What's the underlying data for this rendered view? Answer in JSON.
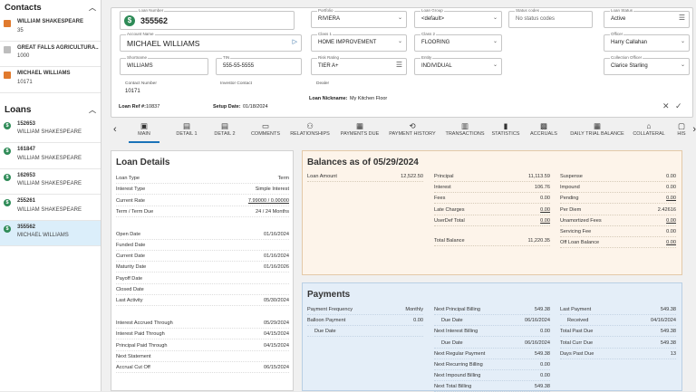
{
  "sidebar": {
    "contacts_title": "Contacts",
    "contacts": [
      {
        "name": "WILLIAM SHAKESPEARE",
        "sub": "35",
        "kind": "person"
      },
      {
        "name": "GREAT FALLS AGRICULTURA...",
        "sub": "1000",
        "kind": "organization"
      },
      {
        "name": "MICHAEL WILLIAMS",
        "sub": "10171",
        "kind": "person"
      }
    ],
    "loans_title": "Loans",
    "loans": [
      {
        "number": "152653",
        "name": "WILLIAM SHAKESPEARE"
      },
      {
        "number": "161847",
        "name": "WILLIAM SHAKESPEARE"
      },
      {
        "number": "162653",
        "name": "WILLIAM SHAKESPEARE"
      },
      {
        "number": "255261",
        "name": "WILLIAM SHAKESPEARE"
      },
      {
        "number": "355562",
        "name": "MICHAEL WILLIAMS"
      }
    ],
    "loan_icon_glyph": "$"
  },
  "header": {
    "loan_number_label": "Loan Number",
    "loan_number": "355562",
    "account_name_label": "Account Name",
    "account_name": "MICHAEL WILLIAMS",
    "shortname_label": "Shortname",
    "shortname": "WILLIAMS",
    "tin_label": "TIN",
    "tin": "555-55-5555",
    "portfolio_label": "Portfolio",
    "portfolio": "RIVIERA",
    "class1_label": "Class 1",
    "class1": "HOME IMPROVEMENT",
    "risk_label": "Risk Rating",
    "risk": "TIER A+",
    "loan_group_label": "Loan Group",
    "loan_group": "<default>",
    "class2_label": "Class 2",
    "class2": "FLOORING",
    "entity_label": "Entity",
    "entity": "INDIVIDUAL",
    "status_codes_label": "Status codes",
    "status_codes": "No status codes",
    "loan_status_label": "Loan Status",
    "loan_status": "Active",
    "officer_label": "Officer",
    "officer": "Harry Callahan",
    "collection_officer_label": "Collection Officer",
    "collection_officer": "Clarice Starling",
    "contact_number_label": "Contact Number",
    "contact_number": "10171",
    "investor_contact_label": "Investor Contact",
    "dealer_label": "Dealer",
    "nickname_label": "Loan Nickname:",
    "nickname": "My Kitchen Floor",
    "loan_ref_label": "Loan Ref #:",
    "loan_ref": "10837",
    "setup_date_label": "Setup Date:",
    "setup_date": "01/18/2024",
    "accent_color": "#2e8b57"
  },
  "tabs": [
    {
      "label": "MAIN",
      "icon": "home-icon",
      "glyph": "▣"
    },
    {
      "label": "DETAIL 1",
      "icon": "detail-icon",
      "glyph": "▤"
    },
    {
      "label": "DETAIL 2",
      "icon": "detail-icon",
      "glyph": "▤"
    },
    {
      "label": "COMMENTS",
      "icon": "comment-icon",
      "glyph": "▭"
    },
    {
      "label": "RELATIONSHIPS",
      "icon": "people-icon",
      "glyph": "⚇"
    },
    {
      "label": "PAYMENTS DUE",
      "icon": "bill-icon",
      "glyph": "▦"
    },
    {
      "label": "PAYMENT HISTORY",
      "icon": "history-icon",
      "glyph": "⟲"
    },
    {
      "label": "TRANSACTIONS",
      "icon": "transactions-icon",
      "glyph": "▥"
    },
    {
      "label": "STATISTICS",
      "icon": "bar-chart-icon",
      "glyph": "▮"
    },
    {
      "label": "ACCRUALS",
      "icon": "calendar-icon",
      "glyph": "▩"
    },
    {
      "label": "DAILY TRIAL BALANCE",
      "icon": "table-icon",
      "glyph": "▦"
    },
    {
      "label": "COLLATERAL",
      "icon": "house-icon",
      "glyph": "⌂"
    },
    {
      "label": "HIS",
      "icon": "history-icon",
      "glyph": "▢"
    }
  ],
  "loan_details": {
    "title": "Loan Details",
    "rows": [
      {
        "k": "Loan Type",
        "v": "Term"
      },
      {
        "k": "Interest Type",
        "v": "Simple Interest"
      },
      {
        "k": "Current Rate",
        "v": "7.99000 / 0.00000",
        "u": true
      },
      {
        "k": "Term / Term Due",
        "v": "24 / 24 Months"
      },
      {
        "k": "",
        "v": ""
      },
      {
        "k": "Open Date",
        "v": "01/16/2024"
      },
      {
        "k": "Funded Date",
        "v": ""
      },
      {
        "k": "Current Date",
        "v": "01/16/2024"
      },
      {
        "k": "Maturity Date",
        "v": "01/16/2026"
      },
      {
        "k": "Payoff Date",
        "v": ""
      },
      {
        "k": "Closed Date",
        "v": ""
      },
      {
        "k": "Last Activity",
        "v": "05/30/2024"
      },
      {
        "k": "",
        "v": ""
      },
      {
        "k": "Interest Accrued Through",
        "v": "05/29/2024"
      },
      {
        "k": "Interest Paid Through",
        "v": "04/15/2024"
      },
      {
        "k": "Principal Paid Through",
        "v": "04/15/2024"
      },
      {
        "k": "Next Statement",
        "v": ""
      },
      {
        "k": "Accrual Cut Off",
        "v": "06/15/2024"
      }
    ]
  },
  "balances": {
    "title": "Balances as of 05/29/2024",
    "col1": [
      {
        "k": "Loan Amount",
        "v": "12,522.50"
      }
    ],
    "col2": [
      {
        "k": "Principal",
        "v": "11,113.59"
      },
      {
        "k": "Interest",
        "v": "106.76"
      },
      {
        "k": "Fees",
        "v": "0.00"
      },
      {
        "k": "Late Charges",
        "v": "0.00",
        "u": true
      },
      {
        "k": "UserDef Total",
        "v": "0.00",
        "u": true
      }
    ],
    "total": {
      "k": "Total Balance",
      "v": "11,220.35"
    },
    "col3": [
      {
        "k": "Suspense",
        "v": "0.00"
      },
      {
        "k": "Impound",
        "v": "0.00"
      },
      {
        "k": "Pending",
        "v": "0.00",
        "u": true
      },
      {
        "k": "Per Diem",
        "v": "2.42616"
      },
      {
        "k": "Unamortized Fees",
        "v": "0.00",
        "u": true
      },
      {
        "k": "Servicing Fee",
        "v": "0.00"
      },
      {
        "k": "Off Loan Balance",
        "v": "0.00",
        "u": true
      }
    ]
  },
  "payments": {
    "title": "Payments",
    "col1": [
      {
        "k": "Payment Frequency",
        "v": "Monthly"
      },
      {
        "k": "Balloon Payment",
        "v": "0.00"
      },
      {
        "k": "Due Date",
        "v": "",
        "indent": true
      }
    ],
    "col2": [
      {
        "k": "Next Principal Billing",
        "v": "549.38"
      },
      {
        "k": "Due Date",
        "v": "06/16/2024",
        "indent": true
      },
      {
        "k": "Next Interest Billing",
        "v": "0.00"
      },
      {
        "k": "Due Date",
        "v": "06/16/2024",
        "indent": true
      },
      {
        "k": "Next Regular Payment",
        "v": "549.38"
      },
      {
        "k": "Next Recurring Billing",
        "v": "0.00"
      },
      {
        "k": "Next Impound Billing",
        "v": "0.00"
      },
      {
        "k": "Next Total Billing",
        "v": "549.38"
      }
    ],
    "col3": [
      {
        "k": "Last Payment",
        "v": "549.38"
      },
      {
        "k": "Received",
        "v": "04/16/2024",
        "indent": true
      },
      {
        "k": "Total Past Due",
        "v": "549.38"
      },
      {
        "k": "Total Curr Due",
        "v": "549.38"
      },
      {
        "k": "Days Past Due",
        "v": "13"
      }
    ]
  }
}
